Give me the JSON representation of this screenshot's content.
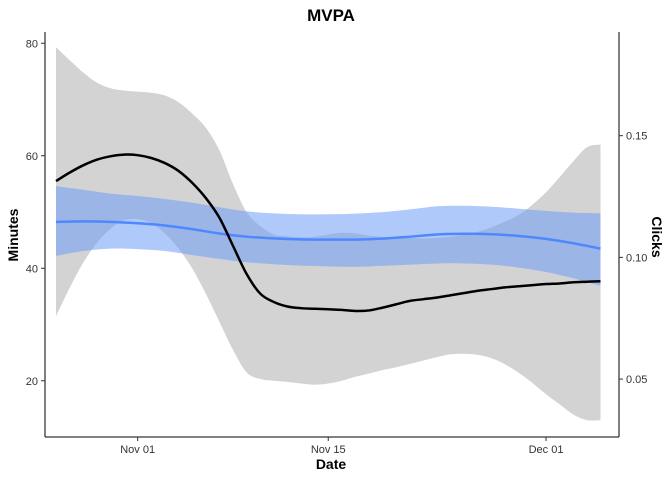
{
  "chart_data": {
    "type": "line",
    "title": "MVPA",
    "xlabel": "Date",
    "ylabel": "Minutes",
    "y2label": "Clicks",
    "x_ticks": [
      {
        "label": "Nov 01",
        "day": 6
      },
      {
        "label": "Nov 15",
        "day": 20
      },
      {
        "label": "Dec 01",
        "day": 36
      }
    ],
    "x_range_days": [
      0,
      40
    ],
    "ylim": [
      10,
      82
    ],
    "yticks": [
      20,
      40,
      60,
      80
    ],
    "y2lim": [
      0.0262,
      0.1926
    ],
    "y2ticks": [
      0.05,
      0.1,
      0.15
    ],
    "grid": false,
    "colors": {
      "minutes_line": "#000000",
      "minutes_band": "#d3d3d3",
      "clicks_line": "#4d88ff",
      "clicks_band": "#6e9cf5"
    },
    "series": [
      {
        "axis": "left",
        "day": [
          0,
          1,
          2,
          3,
          4,
          5,
          6,
          7,
          8,
          9,
          10,
          11,
          12,
          13,
          14,
          15,
          16,
          17,
          18,
          19,
          20,
          21,
          22,
          23,
          24,
          25,
          26,
          27,
          28,
          29,
          30,
          31,
          32,
          33,
          34,
          35,
          36,
          37,
          38,
          39,
          40
        ],
        "mean": [
          55.5,
          57.0,
          58.3,
          59.3,
          59.9,
          60.2,
          60.1,
          59.6,
          58.7,
          57.3,
          55.2,
          52.5,
          49.0,
          44.0,
          39.0,
          35.5,
          34.0,
          33.2,
          32.9,
          32.8,
          32.7,
          32.6,
          32.4,
          32.5,
          33.0,
          33.6,
          34.2,
          34.5,
          34.8,
          35.2,
          35.6,
          36.0,
          36.3,
          36.6,
          36.8,
          37.0,
          37.2,
          37.3,
          37.5,
          37.6,
          37.7
        ],
        "lower": [
          31.5,
          36.5,
          41.0,
          44.5,
          47.0,
          48.5,
          48.7,
          48.0,
          46.2,
          43.5,
          40.0,
          35.5,
          30.5,
          25.5,
          21.5,
          20.3,
          20.0,
          19.8,
          19.5,
          19.3,
          19.5,
          20.0,
          20.7,
          21.3,
          21.9,
          22.4,
          23.0,
          23.6,
          24.2,
          24.7,
          24.8,
          24.6,
          24.0,
          22.9,
          21.4,
          19.6,
          17.6,
          15.8,
          14.0,
          13.0,
          13.0
        ],
        "upper": [
          79.3,
          77.0,
          74.8,
          73.0,
          72.0,
          71.6,
          71.4,
          71.2,
          70.7,
          69.5,
          67.5,
          65.0,
          61.0,
          55.0,
          50.0,
          47.5,
          46.0,
          45.7,
          45.5,
          45.6,
          46.0,
          46.3,
          46.2,
          45.8,
          45.6,
          45.5,
          45.4,
          45.3,
          45.4,
          45.6,
          46.0,
          46.5,
          47.3,
          48.3,
          49.5,
          51.3,
          53.5,
          56.2,
          59.0,
          61.5,
          62.0
        ]
      },
      {
        "axis": "right",
        "day": [
          0,
          2,
          4,
          6,
          8,
          10,
          12,
          14,
          16,
          18,
          20,
          22,
          24,
          26,
          28,
          30,
          32,
          34,
          36,
          38,
          40
        ],
        "mean": [
          0.1146,
          0.1148,
          0.1146,
          0.114,
          0.1131,
          0.1116,
          0.1098,
          0.1085,
          0.1078,
          0.1074,
          0.1073,
          0.1073,
          0.1077,
          0.1085,
          0.1094,
          0.1097,
          0.1095,
          0.1088,
          0.1076,
          0.1058,
          0.1036
        ],
        "lower": [
          0.1006,
          0.1026,
          0.1036,
          0.1034,
          0.1026,
          0.101,
          0.0994,
          0.098,
          0.0972,
          0.0966,
          0.0963,
          0.0961,
          0.0965,
          0.097,
          0.0975,
          0.0975,
          0.097,
          0.0958,
          0.094,
          0.0914,
          0.0883
        ],
        "upper": [
          0.1293,
          0.1278,
          0.1262,
          0.1252,
          0.124,
          0.1225,
          0.1206,
          0.1189,
          0.1181,
          0.1177,
          0.1177,
          0.118,
          0.1186,
          0.1197,
          0.121,
          0.1212,
          0.1208,
          0.12,
          0.1191,
          0.1184,
          0.1181
        ]
      }
    ]
  }
}
